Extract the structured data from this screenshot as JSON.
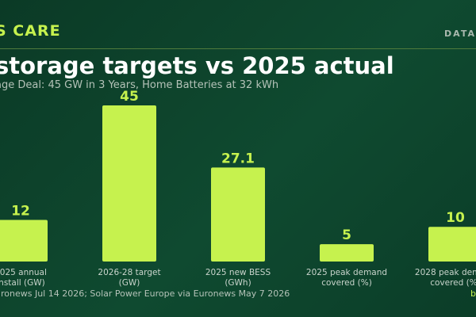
{
  "header": {
    "brand": "S CARE",
    "section": "DATA"
  },
  "chart_data": {
    "type": "bar",
    "title": "storage targets vs 2025 actual",
    "subtitle": "age Deal: 45 GW in 3 Years, Home Batteries at 32 kWh",
    "categories": [
      [
        "2025 annual",
        "install (GW)"
      ],
      [
        "2026-28 target",
        "(GW)"
      ],
      [
        "2025 new BESS",
        "(GWh)"
      ],
      [
        "2025 peak demand",
        "covered (%)"
      ],
      [
        "2028 peak demand",
        "covered (%)"
      ]
    ],
    "values": [
      12,
      45,
      27.1,
      5,
      10
    ],
    "value_labels": [
      "12",
      "45",
      "27.1",
      "5",
      "10"
    ],
    "ylim": [
      0,
      45
    ],
    "grid": false,
    "bar_color": "#c6f24e"
  },
  "footer": {
    "source": "uronews Jul 14 2026; Solar Power Europe via Euronews May 7 2026",
    "brand": "b"
  }
}
